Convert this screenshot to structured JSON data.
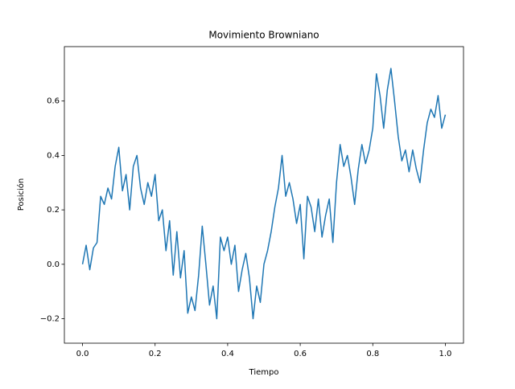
{
  "chart_data": {
    "type": "line",
    "title": "Movimiento Browniano",
    "x_label": "Tiempo",
    "y_label": "Posición",
    "x": [
      0,
      0.01,
      0.02,
      0.03,
      0.04,
      0.05,
      0.06,
      0.07,
      0.08,
      0.09,
      0.1,
      0.11,
      0.12,
      0.13,
      0.14,
      0.15,
      0.16,
      0.17,
      0.18,
      0.19,
      0.2,
      0.21,
      0.22,
      0.23,
      0.24,
      0.25,
      0.26,
      0.27,
      0.28,
      0.29,
      0.3,
      0.31,
      0.32,
      0.33,
      0.34,
      0.35,
      0.36,
      0.37,
      0.38,
      0.39,
      0.4,
      0.41,
      0.42,
      0.43,
      0.44,
      0.45,
      0.46,
      0.47,
      0.48,
      0.49,
      0.5,
      0.51,
      0.52,
      0.53,
      0.54,
      0.55,
      0.56,
      0.57,
      0.58,
      0.59,
      0.6,
      0.61,
      0.62,
      0.63,
      0.64,
      0.65,
      0.66,
      0.67,
      0.68,
      0.69,
      0.7,
      0.71,
      0.72,
      0.73,
      0.74,
      0.75,
      0.76,
      0.77,
      0.78,
      0.79,
      0.8,
      0.81,
      0.82,
      0.83,
      0.84,
      0.85,
      0.86,
      0.87,
      0.88,
      0.89,
      0.9,
      0.91,
      0.92,
      0.93,
      0.94,
      0.95,
      0.96,
      0.97,
      0.98,
      0.99,
      1
    ],
    "series": [
      {
        "name": "Movimiento Browniano",
        "color": "#1f77b4",
        "values": [
          0,
          0.07,
          -0.02,
          0.06,
          0.08,
          0.25,
          0.22,
          0.28,
          0.24,
          0.36,
          0.43,
          0.27,
          0.33,
          0.2,
          0.36,
          0.4,
          0.28,
          0.22,
          0.3,
          0.25,
          0.33,
          0.16,
          0.2,
          0.05,
          0.16,
          -0.04,
          0.12,
          -0.05,
          0.05,
          -0.18,
          -0.12,
          -0.17,
          -0.04,
          0.14,
          0,
          -0.15,
          -0.08,
          -0.2,
          0.1,
          0.05,
          0.1,
          0,
          0.07,
          -0.1,
          -0.02,
          0.04,
          -0.05,
          -0.2,
          -0.08,
          -0.14,
          0,
          0.05,
          0.12,
          0.21,
          0.28,
          0.4,
          0.25,
          0.3,
          0.24,
          0.15,
          0.22,
          0.02,
          0.25,
          0.21,
          0.12,
          0.24,
          0.1,
          0.18,
          0.24,
          0.08,
          0.3,
          0.44,
          0.36,
          0.4,
          0.32,
          0.22,
          0.35,
          0.44,
          0.37,
          0.42,
          0.5,
          0.7,
          0.62,
          0.5,
          0.64,
          0.72,
          0.6,
          0.47,
          0.38,
          0.42,
          0.34,
          0.42,
          0.35,
          0.3,
          0.42,
          0.52,
          0.57,
          0.54,
          0.62,
          0.5,
          0.55
        ]
      }
    ],
    "xlim": [
      -0.05,
      1.05
    ],
    "ylim": [
      -0.29,
      0.8
    ],
    "xticks": [
      {
        "value": 0,
        "label": "0.0"
      },
      {
        "value": 0.2,
        "label": "0.2"
      },
      {
        "value": 0.4,
        "label": "0.4"
      },
      {
        "value": 0.6,
        "label": "0.6"
      },
      {
        "value": 0.8,
        "label": "0.8"
      },
      {
        "value": 1,
        "label": "1.0"
      }
    ],
    "yticks": [
      {
        "value": -0.2,
        "label": "−0.2"
      },
      {
        "value": 0,
        "label": "0.0"
      },
      {
        "value": 0.2,
        "label": "0.2"
      },
      {
        "value": 0.4,
        "label": "0.4"
      },
      {
        "value": 0.6,
        "label": "0.6"
      }
    ]
  }
}
